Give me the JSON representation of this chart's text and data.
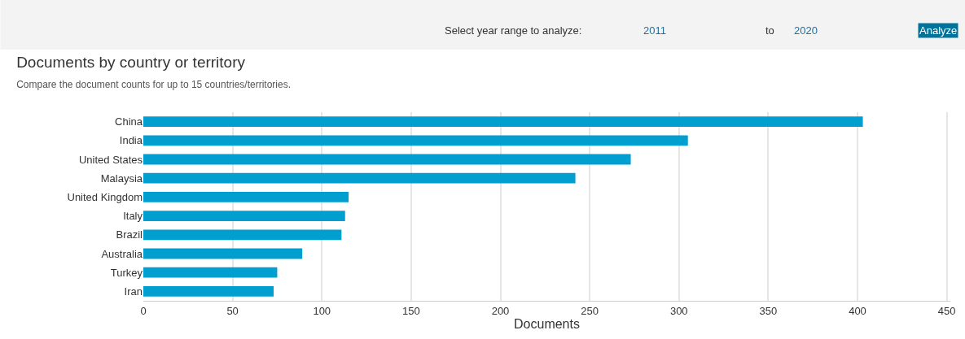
{
  "chart_data": {
    "type": "bar",
    "orientation": "horizontal",
    "title": "Documents by country or territory",
    "subtitle": "Compare the document counts for up to 15 countries/territories.",
    "xlabel": "Documents",
    "categories": [
      "China",
      "India",
      "United States",
      "Malaysia",
      "United Kingdom",
      "Italy",
      "Brazil",
      "Australia",
      "Turkey",
      "Iran"
    ],
    "values": [
      403,
      305,
      273,
      242,
      115,
      113,
      111,
      89,
      75,
      73
    ],
    "color": "#009fd0",
    "xlim": [
      0,
      452
    ],
    "xticks": [
      0,
      50,
      100,
      150,
      200,
      250,
      300,
      350,
      400,
      450
    ],
    "grid": "x",
    "annotations": [
      "Select year range to analyze:",
      "2011",
      "to",
      "2020",
      "Analyze"
    ]
  }
}
